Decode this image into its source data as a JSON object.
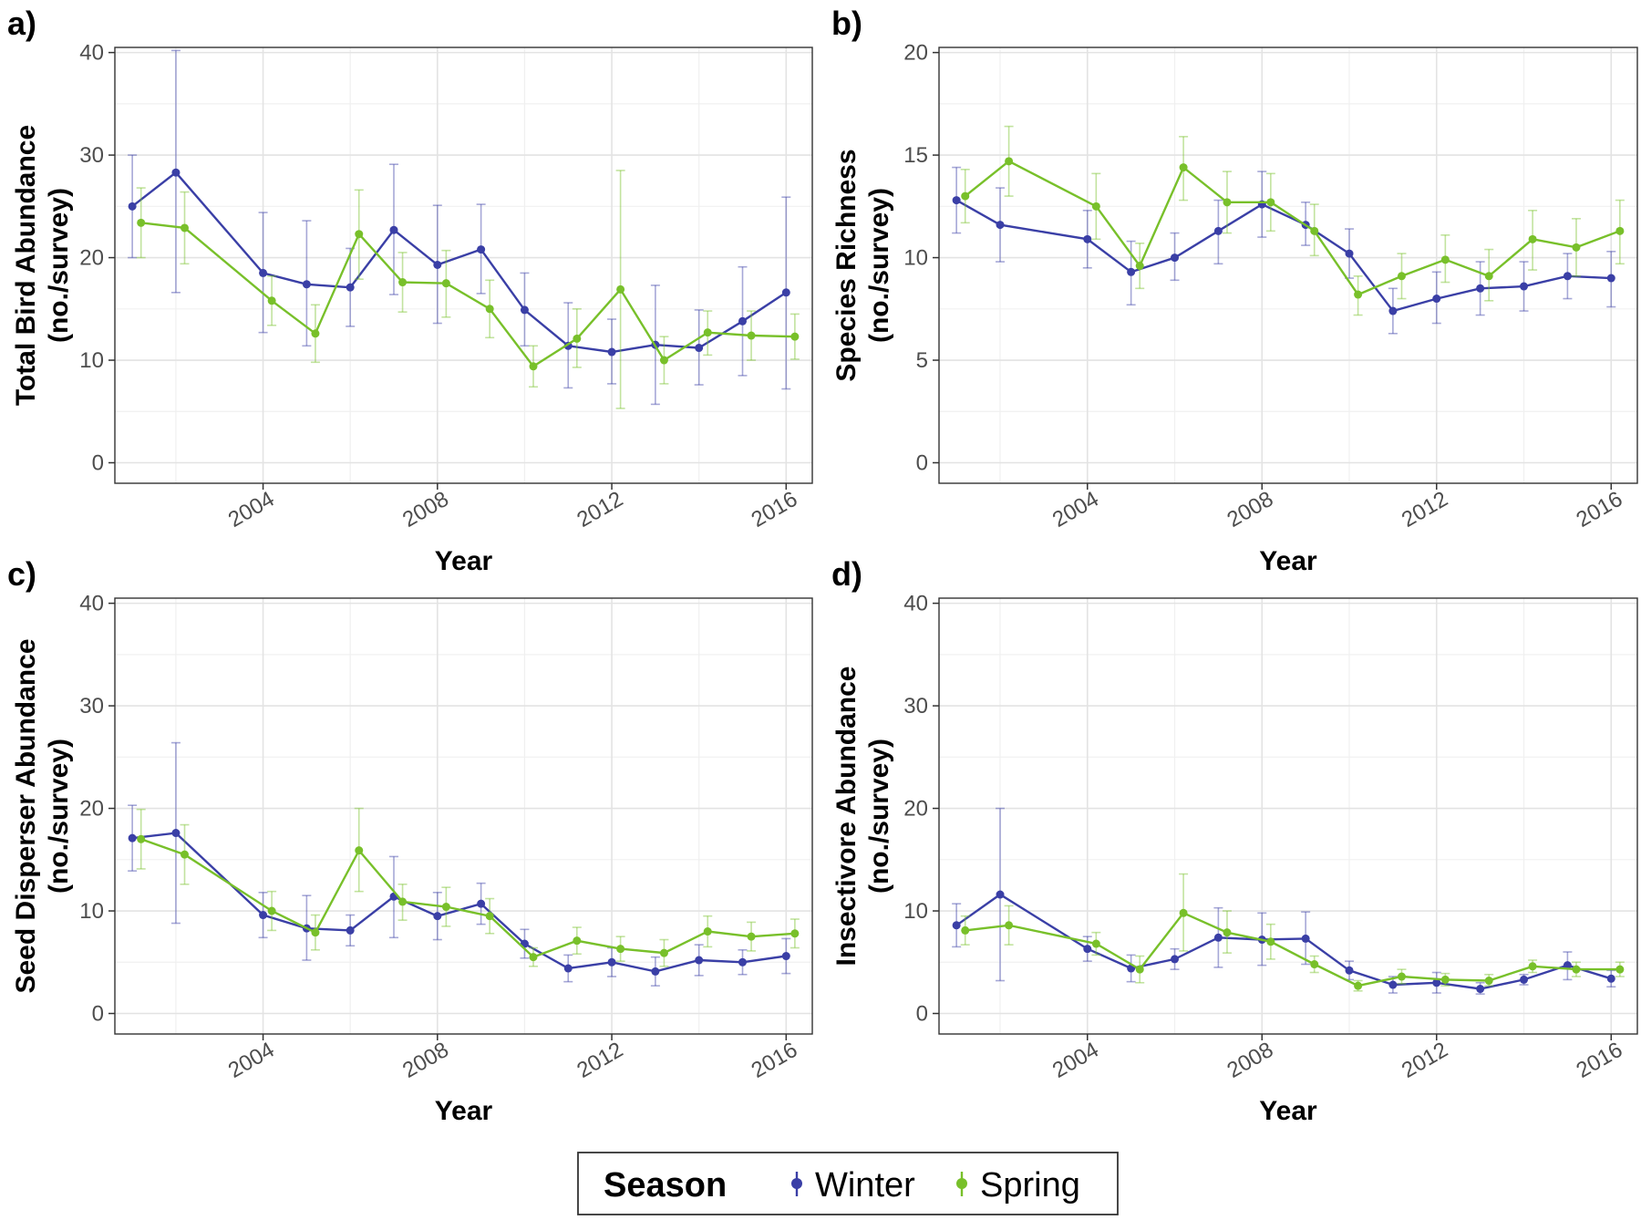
{
  "legend": {
    "title": "Season",
    "entries": [
      {
        "name": "Winter",
        "color": "#3a3fa6"
      },
      {
        "name": "Spring",
        "color": "#78c02a"
      }
    ]
  },
  "chart_data": [
    {
      "type": "line",
      "panel_label": "a)",
      "xlabel": "Year",
      "ylabel": [
        "Total Bird Abundance",
        "(no./survey)"
      ],
      "xlim": [
        2000.6,
        2016.6
      ],
      "ylim": [
        -2,
        40.5
      ],
      "xticks": [
        2004,
        2008,
        2012,
        2016
      ],
      "yticks": [
        0,
        10,
        20,
        30,
        40
      ],
      "grid": true,
      "series": [
        {
          "name": "Winter",
          "color": "#3a3fa6",
          "points": [
            {
              "x": 2001.0,
              "y": 25.0,
              "lo": 20.0,
              "hi": 30.0
            },
            {
              "x": 2002.0,
              "y": 28.3,
              "lo": 16.6,
              "hi": 40.2
            },
            {
              "x": 2004.0,
              "y": 18.5,
              "lo": 12.7,
              "hi": 24.4
            },
            {
              "x": 2005.0,
              "y": 17.4,
              "lo": 11.4,
              "hi": 23.6
            },
            {
              "x": 2006.0,
              "y": 17.1,
              "lo": 13.3,
              "hi": 20.9
            },
            {
              "x": 2007.0,
              "y": 22.7,
              "lo": 16.4,
              "hi": 29.1
            },
            {
              "x": 2008.0,
              "y": 19.3,
              "lo": 13.6,
              "hi": 25.1
            },
            {
              "x": 2009.0,
              "y": 20.8,
              "lo": 16.5,
              "hi": 25.2
            },
            {
              "x": 2010.0,
              "y": 14.9,
              "lo": 11.4,
              "hi": 18.5
            },
            {
              "x": 2011.0,
              "y": 11.4,
              "lo": 7.3,
              "hi": 15.6
            },
            {
              "x": 2012.0,
              "y": 10.8,
              "lo": 7.7,
              "hi": 14.0
            },
            {
              "x": 2013.0,
              "y": 11.5,
              "lo": 5.7,
              "hi": 17.3
            },
            {
              "x": 2014.0,
              "y": 11.2,
              "lo": 7.6,
              "hi": 14.9
            },
            {
              "x": 2015.0,
              "y": 13.8,
              "lo": 8.5,
              "hi": 19.1
            },
            {
              "x": 2016.0,
              "y": 16.6,
              "lo": 7.2,
              "hi": 25.9
            }
          ]
        },
        {
          "name": "Spring",
          "color": "#78c02a",
          "points": [
            {
              "x": 2001.2,
              "y": 23.4,
              "lo": 20.0,
              "hi": 26.8
            },
            {
              "x": 2002.2,
              "y": 22.9,
              "lo": 19.4,
              "hi": 26.4
            },
            {
              "x": 2004.2,
              "y": 15.8,
              "lo": 13.4,
              "hi": 18.2
            },
            {
              "x": 2005.2,
              "y": 12.6,
              "lo": 9.8,
              "hi": 15.4
            },
            {
              "x": 2006.2,
              "y": 22.3,
              "lo": 17.9,
              "hi": 26.6
            },
            {
              "x": 2007.2,
              "y": 17.6,
              "lo": 14.7,
              "hi": 20.5
            },
            {
              "x": 2008.2,
              "y": 17.5,
              "lo": 14.2,
              "hi": 20.7
            },
            {
              "x": 2009.2,
              "y": 15.0,
              "lo": 12.2,
              "hi": 17.8
            },
            {
              "x": 2010.2,
              "y": 9.4,
              "lo": 7.4,
              "hi": 11.4
            },
            {
              "x": 2011.2,
              "y": 12.1,
              "lo": 9.3,
              "hi": 15.0
            },
            {
              "x": 2012.2,
              "y": 16.9,
              "lo": 5.3,
              "hi": 28.5
            },
            {
              "x": 2013.2,
              "y": 10.0,
              "lo": 7.7,
              "hi": 12.3
            },
            {
              "x": 2014.2,
              "y": 12.7,
              "lo": 10.5,
              "hi": 14.8
            },
            {
              "x": 2015.2,
              "y": 12.4,
              "lo": 10.0,
              "hi": 14.8
            },
            {
              "x": 2016.2,
              "y": 12.3,
              "lo": 10.1,
              "hi": 14.5
            }
          ]
        }
      ]
    },
    {
      "type": "line",
      "panel_label": "b)",
      "xlabel": "Year",
      "ylabel": [
        "Species Richness",
        "(no./survey)"
      ],
      "xlim": [
        2000.6,
        2016.6
      ],
      "ylim": [
        -1,
        20.25
      ],
      "xticks": [
        2004,
        2008,
        2012,
        2016
      ],
      "yticks": [
        0,
        5,
        10,
        15,
        20
      ],
      "grid": true,
      "series": [
        {
          "name": "Winter",
          "color": "#3a3fa6",
          "points": [
            {
              "x": 2001.0,
              "y": 12.8,
              "lo": 11.2,
              "hi": 14.4
            },
            {
              "x": 2002.0,
              "y": 11.6,
              "lo": 9.8,
              "hi": 13.4
            },
            {
              "x": 2004.0,
              "y": 10.9,
              "lo": 9.5,
              "hi": 12.3
            },
            {
              "x": 2005.0,
              "y": 9.3,
              "lo": 7.7,
              "hi": 10.8
            },
            {
              "x": 2006.0,
              "y": 10.0,
              "lo": 8.9,
              "hi": 11.2
            },
            {
              "x": 2007.0,
              "y": 11.3,
              "lo": 9.7,
              "hi": 12.8
            },
            {
              "x": 2008.0,
              "y": 12.6,
              "lo": 11.0,
              "hi": 14.2
            },
            {
              "x": 2009.0,
              "y": 11.6,
              "lo": 10.6,
              "hi": 12.7
            },
            {
              "x": 2010.0,
              "y": 10.2,
              "lo": 9.0,
              "hi": 11.4
            },
            {
              "x": 2011.0,
              "y": 7.4,
              "lo": 6.3,
              "hi": 8.5
            },
            {
              "x": 2012.0,
              "y": 8.0,
              "lo": 6.8,
              "hi": 9.3
            },
            {
              "x": 2013.0,
              "y": 8.5,
              "lo": 7.2,
              "hi": 9.8
            },
            {
              "x": 2014.0,
              "y": 8.6,
              "lo": 7.4,
              "hi": 9.8
            },
            {
              "x": 2015.0,
              "y": 9.1,
              "lo": 8.0,
              "hi": 10.2
            },
            {
              "x": 2016.0,
              "y": 9.0,
              "lo": 7.6,
              "hi": 10.3
            }
          ]
        },
        {
          "name": "Spring",
          "color": "#78c02a",
          "points": [
            {
              "x": 2001.2,
              "y": 13.0,
              "lo": 11.7,
              "hi": 14.3
            },
            {
              "x": 2002.2,
              "y": 14.7,
              "lo": 13.0,
              "hi": 16.4
            },
            {
              "x": 2004.2,
              "y": 12.5,
              "lo": 10.9,
              "hi": 14.1
            },
            {
              "x": 2005.2,
              "y": 9.6,
              "lo": 8.5,
              "hi": 10.7
            },
            {
              "x": 2006.2,
              "y": 14.4,
              "lo": 12.8,
              "hi": 15.9
            },
            {
              "x": 2007.2,
              "y": 12.7,
              "lo": 11.2,
              "hi": 14.2
            },
            {
              "x": 2008.2,
              "y": 12.7,
              "lo": 11.3,
              "hi": 14.1
            },
            {
              "x": 2009.2,
              "y": 11.3,
              "lo": 10.1,
              "hi": 12.6
            },
            {
              "x": 2010.2,
              "y": 8.2,
              "lo": 7.2,
              "hi": 9.1
            },
            {
              "x": 2011.2,
              "y": 9.1,
              "lo": 8.0,
              "hi": 10.2
            },
            {
              "x": 2012.2,
              "y": 9.9,
              "lo": 8.8,
              "hi": 11.1
            },
            {
              "x": 2013.2,
              "y": 9.1,
              "lo": 7.9,
              "hi": 10.4
            },
            {
              "x": 2014.2,
              "y": 10.9,
              "lo": 9.4,
              "hi": 12.3
            },
            {
              "x": 2015.2,
              "y": 10.5,
              "lo": 9.1,
              "hi": 11.9
            },
            {
              "x": 2016.2,
              "y": 11.3,
              "lo": 9.7,
              "hi": 12.8
            }
          ]
        }
      ]
    },
    {
      "type": "line",
      "panel_label": "c)",
      "xlabel": "Year",
      "ylabel": [
        "Seed Disperser Abundance",
        "(no./survey)"
      ],
      "xlim": [
        2000.6,
        2016.6
      ],
      "ylim": [
        -2,
        40.5
      ],
      "xticks": [
        2004,
        2008,
        2012,
        2016
      ],
      "yticks": [
        0,
        10,
        20,
        30,
        40
      ],
      "grid": true,
      "series": [
        {
          "name": "Winter",
          "color": "#3a3fa6",
          "points": [
            {
              "x": 2001.0,
              "y": 17.1,
              "lo": 13.9,
              "hi": 20.3
            },
            {
              "x": 2002.0,
              "y": 17.6,
              "lo": 8.8,
              "hi": 26.4
            },
            {
              "x": 2004.0,
              "y": 9.6,
              "lo": 7.4,
              "hi": 11.8
            },
            {
              "x": 2005.0,
              "y": 8.3,
              "lo": 5.2,
              "hi": 11.5
            },
            {
              "x": 2006.0,
              "y": 8.1,
              "lo": 6.6,
              "hi": 9.6
            },
            {
              "x": 2007.0,
              "y": 11.4,
              "lo": 7.4,
              "hi": 15.3
            },
            {
              "x": 2008.0,
              "y": 9.5,
              "lo": 7.2,
              "hi": 11.8
            },
            {
              "x": 2009.0,
              "y": 10.7,
              "lo": 8.7,
              "hi": 12.7
            },
            {
              "x": 2010.0,
              "y": 6.8,
              "lo": 5.4,
              "hi": 8.2
            },
            {
              "x": 2011.0,
              "y": 4.4,
              "lo": 3.1,
              "hi": 5.7
            },
            {
              "x": 2012.0,
              "y": 5.0,
              "lo": 3.6,
              "hi": 6.4
            },
            {
              "x": 2013.0,
              "y": 4.1,
              "lo": 2.7,
              "hi": 5.5
            },
            {
              "x": 2014.0,
              "y": 5.2,
              "lo": 3.7,
              "hi": 6.7
            },
            {
              "x": 2015.0,
              "y": 5.0,
              "lo": 3.8,
              "hi": 6.2
            },
            {
              "x": 2016.0,
              "y": 5.6,
              "lo": 3.9,
              "hi": 7.3
            }
          ]
        },
        {
          "name": "Spring",
          "color": "#78c02a",
          "points": [
            {
              "x": 2001.2,
              "y": 17.0,
              "lo": 14.1,
              "hi": 19.9
            },
            {
              "x": 2002.2,
              "y": 15.5,
              "lo": 12.6,
              "hi": 18.4
            },
            {
              "x": 2004.2,
              "y": 10.0,
              "lo": 8.1,
              "hi": 11.9
            },
            {
              "x": 2005.2,
              "y": 7.9,
              "lo": 6.2,
              "hi": 9.6
            },
            {
              "x": 2006.2,
              "y": 15.9,
              "lo": 11.9,
              "hi": 20.0
            },
            {
              "x": 2007.2,
              "y": 10.9,
              "lo": 9.1,
              "hi": 12.6
            },
            {
              "x": 2008.2,
              "y": 10.4,
              "lo": 8.5,
              "hi": 12.3
            },
            {
              "x": 2009.2,
              "y": 9.5,
              "lo": 7.8,
              "hi": 11.2
            },
            {
              "x": 2010.2,
              "y": 5.5,
              "lo": 4.6,
              "hi": 6.4
            },
            {
              "x": 2011.2,
              "y": 7.1,
              "lo": 5.8,
              "hi": 8.4
            },
            {
              "x": 2012.2,
              "y": 6.3,
              "lo": 5.1,
              "hi": 7.5
            },
            {
              "x": 2013.2,
              "y": 5.9,
              "lo": 4.6,
              "hi": 7.2
            },
            {
              "x": 2014.2,
              "y": 8.0,
              "lo": 6.5,
              "hi": 9.5
            },
            {
              "x": 2015.2,
              "y": 7.5,
              "lo": 6.1,
              "hi": 8.9
            },
            {
              "x": 2016.2,
              "y": 7.8,
              "lo": 6.4,
              "hi": 9.2
            }
          ]
        }
      ]
    },
    {
      "type": "line",
      "panel_label": "d)",
      "xlabel": "Year",
      "ylabel": [
        "Insectivore Abundance",
        "(no./survey)"
      ],
      "xlim": [
        2000.6,
        2016.6
      ],
      "ylim": [
        -2,
        40.5
      ],
      "xticks": [
        2004,
        2008,
        2012,
        2016
      ],
      "yticks": [
        0,
        10,
        20,
        30,
        40
      ],
      "grid": true,
      "series": [
        {
          "name": "Winter",
          "color": "#3a3fa6",
          "points": [
            {
              "x": 2001.0,
              "y": 8.6,
              "lo": 6.5,
              "hi": 10.7
            },
            {
              "x": 2002.0,
              "y": 11.6,
              "lo": 3.2,
              "hi": 20.0
            },
            {
              "x": 2004.0,
              "y": 6.3,
              "lo": 5.1,
              "hi": 7.5
            },
            {
              "x": 2005.0,
              "y": 4.4,
              "lo": 3.1,
              "hi": 5.7
            },
            {
              "x": 2006.0,
              "y": 5.3,
              "lo": 4.3,
              "hi": 6.3
            },
            {
              "x": 2007.0,
              "y": 7.4,
              "lo": 4.5,
              "hi": 10.3
            },
            {
              "x": 2008.0,
              "y": 7.2,
              "lo": 4.7,
              "hi": 9.8
            },
            {
              "x": 2009.0,
              "y": 7.3,
              "lo": 4.8,
              "hi": 9.9
            },
            {
              "x": 2010.0,
              "y": 4.2,
              "lo": 3.3,
              "hi": 5.1
            },
            {
              "x": 2011.0,
              "y": 2.8,
              "lo": 2.0,
              "hi": 3.6
            },
            {
              "x": 2012.0,
              "y": 3.0,
              "lo": 2.0,
              "hi": 4.0
            },
            {
              "x": 2013.0,
              "y": 2.4,
              "lo": 1.9,
              "hi": 3.0
            },
            {
              "x": 2014.0,
              "y": 3.3,
              "lo": 2.8,
              "hi": 3.8
            },
            {
              "x": 2015.0,
              "y": 4.7,
              "lo": 3.3,
              "hi": 6.0
            },
            {
              "x": 2016.0,
              "y": 3.4,
              "lo": 2.6,
              "hi": 4.2
            }
          ]
        },
        {
          "name": "Spring",
          "color": "#78c02a",
          "points": [
            {
              "x": 2001.2,
              "y": 8.1,
              "lo": 6.7,
              "hi": 9.5
            },
            {
              "x": 2002.2,
              "y": 8.6,
              "lo": 6.7,
              "hi": 10.5
            },
            {
              "x": 2004.2,
              "y": 6.8,
              "lo": 5.7,
              "hi": 7.9
            },
            {
              "x": 2005.2,
              "y": 4.3,
              "lo": 3.0,
              "hi": 5.6
            },
            {
              "x": 2006.2,
              "y": 9.8,
              "lo": 6.1,
              "hi": 13.6
            },
            {
              "x": 2007.2,
              "y": 7.9,
              "lo": 5.9,
              "hi": 10.0
            },
            {
              "x": 2008.2,
              "y": 7.0,
              "lo": 5.3,
              "hi": 8.7
            },
            {
              "x": 2009.2,
              "y": 4.8,
              "lo": 4.0,
              "hi": 5.6
            },
            {
              "x": 2010.2,
              "y": 2.7,
              "lo": 2.2,
              "hi": 3.2
            },
            {
              "x": 2011.2,
              "y": 3.6,
              "lo": 2.9,
              "hi": 4.3
            },
            {
              "x": 2012.2,
              "y": 3.3,
              "lo": 2.7,
              "hi": 3.9
            },
            {
              "x": 2013.2,
              "y": 3.2,
              "lo": 2.7,
              "hi": 3.8
            },
            {
              "x": 2014.2,
              "y": 4.6,
              "lo": 4.0,
              "hi": 5.2
            },
            {
              "x": 2015.2,
              "y": 4.3,
              "lo": 3.6,
              "hi": 5.0
            },
            {
              "x": 2016.2,
              "y": 4.3,
              "lo": 3.6,
              "hi": 5.0
            }
          ]
        }
      ]
    }
  ]
}
